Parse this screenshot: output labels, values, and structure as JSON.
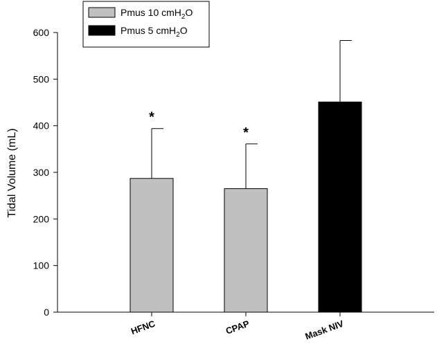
{
  "chart_data": {
    "type": "bar",
    "categories": [
      "HFNC",
      "CPAP",
      "Mask NIV"
    ],
    "values": [
      287,
      265,
      451
    ],
    "error_upper": [
      394,
      361,
      583
    ],
    "annotations": [
      "*",
      "*",
      ""
    ],
    "bar_series": [
      "Pmus 10 cmH2O",
      "Pmus 10 cmH2O",
      "Pmus 5 cmH2O"
    ],
    "ylabel": "Tidal Volume (mL)",
    "xlabel": "",
    "ylim": [
      0,
      600
    ],
    "yticks": [
      0,
      100,
      200,
      300,
      400,
      500,
      600
    ],
    "grid": false,
    "legend_position": "top-left",
    "legend": [
      {
        "name": "Pmus 10 cmH2O",
        "prefix": "Pmus 10 cmH",
        "sub": "2",
        "suffix": "O",
        "color": "#c0c0c0"
      },
      {
        "name": "Pmus 5 cmH2O",
        "prefix": "Pmus 5 cmH",
        "sub": "2",
        "suffix": "O",
        "color": "#000000"
      }
    ]
  }
}
